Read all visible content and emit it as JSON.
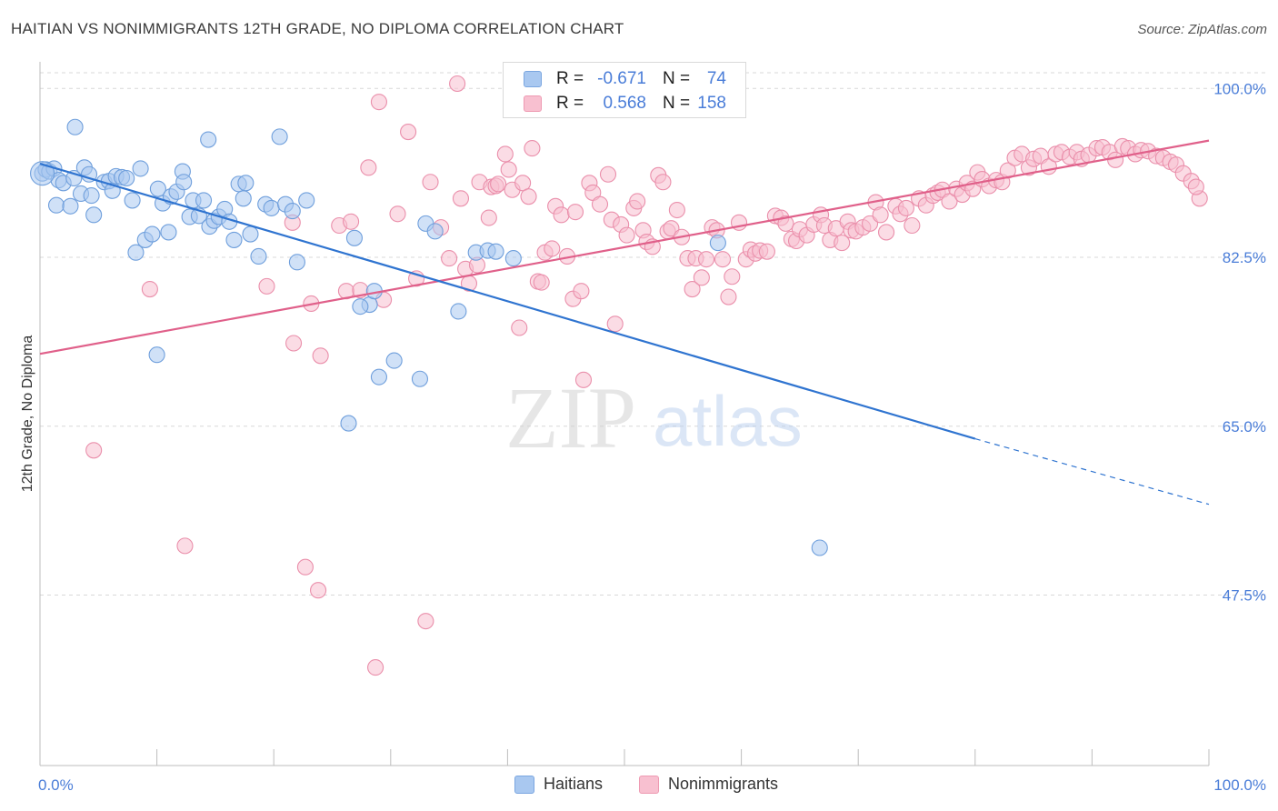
{
  "header": {
    "title": "HAITIAN VS NONIMMIGRANTS 12TH GRADE, NO DIPLOMA CORRELATION CHART",
    "source": "Source: ZipAtlas.com"
  },
  "legend": {
    "rows": [
      {
        "r_label": "R =",
        "r_value": "-0.671",
        "n_label": "N =",
        "n_value": "74",
        "swatch_fill": "#a9c8f0",
        "swatch_stroke": "#7aa6e0"
      },
      {
        "r_label": "R =",
        "r_value": "0.568",
        "n_label": "N =",
        "n_value": "158",
        "swatch_fill": "#f8c0d0",
        "swatch_stroke": "#ee9ab2"
      }
    ]
  },
  "watermark": {
    "zip": "ZIP",
    "atlas": "atlas"
  },
  "colors": {
    "haitians_fill": "#a9c8f0",
    "haitians_stroke": "#6f9fdc",
    "haitians_line": "#2f74d0",
    "nonimm_fill": "#f8c0d0",
    "nonimm_stroke": "#ea8fab",
    "nonimm_line": "#e0608a",
    "axis_label": "#4a7dd8",
    "grid": "#d8d8d8"
  },
  "chart_data": {
    "type": "scatter",
    "title": "HAITIAN VS NONIMMIGRANTS 12TH GRADE, NO DIPLOMA CORRELATION CHART",
    "xlabel": "",
    "ylabel": "12th Grade, No Diploma",
    "xlim": [
      0,
      100
    ],
    "ylim": [
      31.0,
      103.0
    ],
    "x_tick_labels": [
      "0.0%",
      "100.0%"
    ],
    "y_ticks": [
      47.5,
      65.0,
      82.5,
      100.0
    ],
    "y_tick_labels": [
      "47.5%",
      "65.0%",
      "82.5%",
      "100.0%"
    ],
    "grid": true,
    "legend_position": "bottom-center",
    "series": [
      {
        "name": "Haitians",
        "R": -0.671,
        "N": 74,
        "trend": {
          "x0": 0,
          "y0": 92.2,
          "x1": 80,
          "y1": 63.7,
          "dash_x1": 100,
          "dash_y1": 56.9
        },
        "points": [
          [
            0.2,
            91.2
          ],
          [
            0.5,
            91.6
          ],
          [
            0.8,
            91.4
          ],
          [
            1.2,
            91.7
          ],
          [
            1.6,
            90.5
          ],
          [
            2.0,
            90.2
          ],
          [
            1.4,
            87.9
          ],
          [
            2.6,
            87.8
          ],
          [
            2.9,
            90.7
          ],
          [
            3.5,
            89.1
          ],
          [
            3.8,
            91.8
          ],
          [
            4.2,
            91.1
          ],
          [
            4.4,
            88.9
          ],
          [
            4.6,
            86.9
          ],
          [
            5.5,
            90.3
          ],
          [
            5.9,
            90.4
          ],
          [
            6.2,
            89.4
          ],
          [
            6.5,
            90.9
          ],
          [
            7.0,
            90.8
          ],
          [
            7.4,
            90.7
          ],
          [
            7.9,
            88.4
          ],
          [
            8.2,
            83.0
          ],
          [
            8.6,
            91.7
          ],
          [
            9.0,
            84.3
          ],
          [
            9.6,
            84.9
          ],
          [
            10.1,
            89.6
          ],
          [
            10.5,
            88.1
          ],
          [
            11.0,
            85.1
          ],
          [
            11.2,
            88.8
          ],
          [
            11.7,
            89.3
          ],
          [
            12.2,
            91.4
          ],
          [
            12.3,
            90.3
          ],
          [
            12.8,
            86.7
          ],
          [
            13.1,
            88.4
          ],
          [
            13.6,
            86.8
          ],
          [
            14.0,
            88.4
          ],
          [
            14.5,
            85.7
          ],
          [
            14.9,
            86.3
          ],
          [
            15.3,
            86.7
          ],
          [
            15.8,
            87.5
          ],
          [
            16.2,
            86.2
          ],
          [
            16.6,
            84.3
          ],
          [
            17.0,
            90.1
          ],
          [
            17.4,
            88.6
          ],
          [
            17.6,
            90.2
          ],
          [
            18.0,
            84.9
          ],
          [
            18.7,
            82.6
          ],
          [
            19.3,
            88.0
          ],
          [
            19.8,
            87.6
          ],
          [
            20.5,
            95.0
          ],
          [
            21.0,
            88.0
          ],
          [
            21.6,
            87.3
          ],
          [
            22.0,
            82.0
          ],
          [
            22.8,
            88.4
          ],
          [
            10.0,
            72.4
          ],
          [
            26.9,
            84.5
          ],
          [
            28.2,
            77.6
          ],
          [
            28.6,
            79.0
          ],
          [
            29.0,
            70.1
          ],
          [
            30.3,
            71.8
          ],
          [
            32.5,
            69.9
          ],
          [
            33.0,
            86.0
          ],
          [
            35.8,
            76.9
          ],
          [
            37.3,
            83.0
          ],
          [
            38.3,
            83.2
          ],
          [
            39.0,
            83.1
          ],
          [
            40.5,
            82.4
          ],
          [
            26.4,
            65.3
          ],
          [
            33.8,
            85.2
          ],
          [
            27.4,
            77.4
          ],
          [
            58.0,
            84.0
          ],
          [
            66.7,
            52.4
          ],
          [
            3.0,
            96.0
          ],
          [
            14.4,
            94.7
          ]
        ]
      },
      {
        "name": "Nonimmigrants",
        "R": 0.568,
        "N": 158,
        "trend": {
          "x0": 0,
          "y0": 72.5,
          "x1": 100,
          "y1": 94.6
        },
        "points": [
          [
            4.6,
            62.5
          ],
          [
            9.4,
            79.2
          ],
          [
            12.4,
            52.6
          ],
          [
            19.4,
            79.5
          ],
          [
            21.6,
            86.1
          ],
          [
            21.7,
            73.6
          ],
          [
            22.7,
            50.4
          ],
          [
            23.2,
            77.7
          ],
          [
            23.8,
            48.0
          ],
          [
            24.0,
            72.3
          ],
          [
            25.6,
            85.8
          ],
          [
            26.2,
            79.0
          ],
          [
            26.6,
            86.2
          ],
          [
            27.4,
            79.1
          ],
          [
            28.1,
            91.8
          ],
          [
            28.7,
            40.0
          ],
          [
            29.0,
            98.6
          ],
          [
            29.4,
            78.1
          ],
          [
            30.6,
            87.0
          ],
          [
            31.5,
            95.5
          ],
          [
            32.2,
            80.3
          ],
          [
            33.0,
            44.8
          ],
          [
            33.4,
            90.3
          ],
          [
            34.3,
            85.6
          ],
          [
            35.0,
            82.4
          ],
          [
            35.7,
            100.5
          ],
          [
            36.0,
            88.6
          ],
          [
            36.4,
            81.3
          ],
          [
            36.7,
            79.8
          ],
          [
            37.4,
            81.7
          ],
          [
            37.6,
            90.3
          ],
          [
            38.4,
            86.6
          ],
          [
            38.6,
            89.8
          ],
          [
            39.0,
            89.9
          ],
          [
            39.2,
            90.1
          ],
          [
            39.8,
            93.2
          ],
          [
            40.1,
            91.6
          ],
          [
            40.4,
            89.5
          ],
          [
            41.0,
            75.2
          ],
          [
            41.3,
            90.2
          ],
          [
            41.8,
            88.8
          ],
          [
            42.1,
            93.8
          ],
          [
            42.6,
            80.0
          ],
          [
            42.9,
            79.9
          ],
          [
            43.2,
            83.0
          ],
          [
            43.8,
            83.4
          ],
          [
            44.1,
            87.8
          ],
          [
            44.6,
            86.9
          ],
          [
            45.1,
            82.6
          ],
          [
            45.6,
            78.2
          ],
          [
            45.8,
            87.2
          ],
          [
            46.3,
            79.0
          ],
          [
            46.5,
            69.8
          ],
          [
            47.0,
            90.2
          ],
          [
            47.3,
            89.2
          ],
          [
            47.9,
            88.0
          ],
          [
            48.6,
            91.1
          ],
          [
            48.9,
            86.4
          ],
          [
            49.2,
            75.6
          ],
          [
            49.7,
            85.9
          ],
          [
            50.2,
            84.8
          ],
          [
            50.8,
            87.6
          ],
          [
            51.1,
            88.3
          ],
          [
            51.6,
            85.3
          ],
          [
            51.9,
            84.1
          ],
          [
            52.4,
            83.6
          ],
          [
            52.9,
            91.0
          ],
          [
            53.3,
            90.3
          ],
          [
            53.7,
            85.2
          ],
          [
            54.0,
            85.5
          ],
          [
            54.5,
            87.4
          ],
          [
            54.9,
            84.6
          ],
          [
            55.4,
            82.4
          ],
          [
            55.8,
            79.2
          ],
          [
            56.1,
            82.4
          ],
          [
            56.6,
            80.4
          ],
          [
            57.0,
            82.3
          ],
          [
            57.5,
            85.6
          ],
          [
            57.9,
            85.3
          ],
          [
            58.4,
            82.3
          ],
          [
            58.9,
            78.4
          ],
          [
            59.2,
            80.5
          ],
          [
            59.8,
            86.1
          ],
          [
            60.4,
            82.3
          ],
          [
            60.8,
            83.3
          ],
          [
            61.2,
            82.9
          ],
          [
            61.6,
            83.2
          ],
          [
            62.2,
            83.1
          ],
          [
            62.9,
            86.8
          ],
          [
            63.4,
            86.6
          ],
          [
            63.8,
            86.0
          ],
          [
            64.3,
            84.4
          ],
          [
            64.7,
            84.2
          ],
          [
            65.0,
            85.4
          ],
          [
            65.6,
            84.8
          ],
          [
            66.2,
            85.9
          ],
          [
            66.8,
            86.9
          ],
          [
            67.1,
            85.8
          ],
          [
            67.6,
            84.3
          ],
          [
            68.1,
            85.5
          ],
          [
            68.6,
            84.0
          ],
          [
            69.1,
            86.2
          ],
          [
            69.4,
            85.3
          ],
          [
            69.8,
            85.2
          ],
          [
            70.4,
            85.6
          ],
          [
            71.0,
            86.0
          ],
          [
            71.5,
            88.2
          ],
          [
            71.9,
            86.9
          ],
          [
            72.4,
            85.1
          ],
          [
            73.2,
            87.8
          ],
          [
            73.6,
            87.0
          ],
          [
            74.1,
            87.6
          ],
          [
            74.6,
            85.8
          ],
          [
            75.2,
            88.6
          ],
          [
            75.8,
            87.9
          ],
          [
            76.4,
            88.9
          ],
          [
            76.8,
            89.2
          ],
          [
            77.2,
            89.5
          ],
          [
            77.8,
            88.3
          ],
          [
            78.4,
            89.6
          ],
          [
            78.9,
            89.0
          ],
          [
            79.3,
            90.2
          ],
          [
            79.8,
            89.6
          ],
          [
            80.2,
            91.3
          ],
          [
            80.6,
            90.6
          ],
          [
            81.2,
            89.9
          ],
          [
            81.8,
            90.5
          ],
          [
            82.3,
            90.3
          ],
          [
            82.8,
            91.5
          ],
          [
            83.4,
            92.8
          ],
          [
            84.0,
            93.2
          ],
          [
            84.6,
            91.8
          ],
          [
            85.0,
            92.7
          ],
          [
            85.6,
            93.0
          ],
          [
            86.3,
            91.9
          ],
          [
            86.9,
            93.2
          ],
          [
            87.4,
            93.4
          ],
          [
            88.1,
            92.9
          ],
          [
            88.7,
            93.4
          ],
          [
            89.1,
            92.7
          ],
          [
            89.7,
            93.1
          ],
          [
            90.4,
            93.8
          ],
          [
            90.9,
            93.9
          ],
          [
            91.5,
            93.4
          ],
          [
            92.0,
            92.6
          ],
          [
            92.6,
            94.0
          ],
          [
            93.1,
            93.8
          ],
          [
            93.7,
            93.2
          ],
          [
            94.2,
            93.6
          ],
          [
            94.8,
            93.5
          ],
          [
            95.5,
            93.0
          ],
          [
            96.1,
            92.8
          ],
          [
            96.7,
            92.4
          ],
          [
            97.2,
            92.1
          ],
          [
            97.8,
            91.2
          ],
          [
            98.5,
            90.4
          ],
          [
            99.2,
            88.6
          ],
          [
            98.9,
            89.8
          ]
        ]
      }
    ]
  },
  "bottom_legend": {
    "items": [
      "Haitians",
      "Nonimmigrants"
    ]
  }
}
